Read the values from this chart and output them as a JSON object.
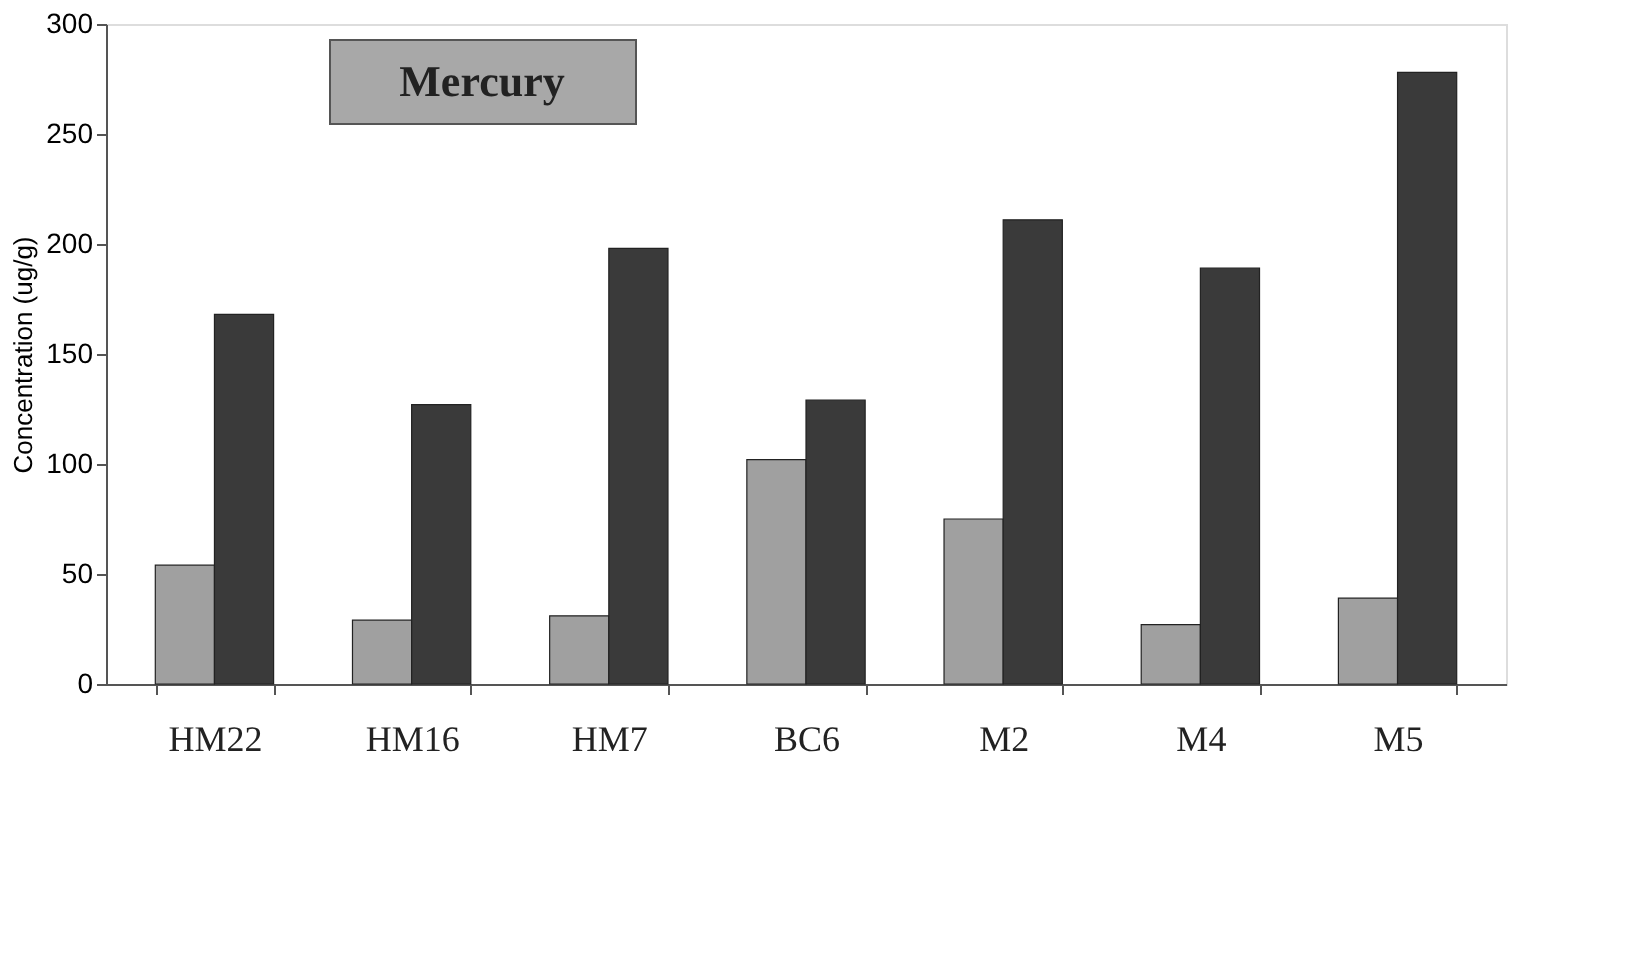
{
  "chart_data": {
    "type": "bar",
    "ylabel": "Concentration (ug/g)",
    "annotations": [
      "Mercury"
    ],
    "categories": [
      "HM22",
      "HM16",
      "HM7",
      "BC6",
      "M2",
      "M4",
      "M5"
    ],
    "series": [
      {
        "color": "#a0a0a0",
        "values": [
          54,
          29,
          31,
          102,
          75,
          27,
          39
        ]
      },
      {
        "color": "#3a3a3a",
        "values": [
          168,
          127,
          198,
          129,
          211,
          189,
          278
        ]
      }
    ],
    "ylim": [
      0,
      300
    ],
    "yticks": [
      0,
      50,
      100,
      150,
      200,
      250,
      300
    ],
    "grid": false,
    "legend": false
  }
}
